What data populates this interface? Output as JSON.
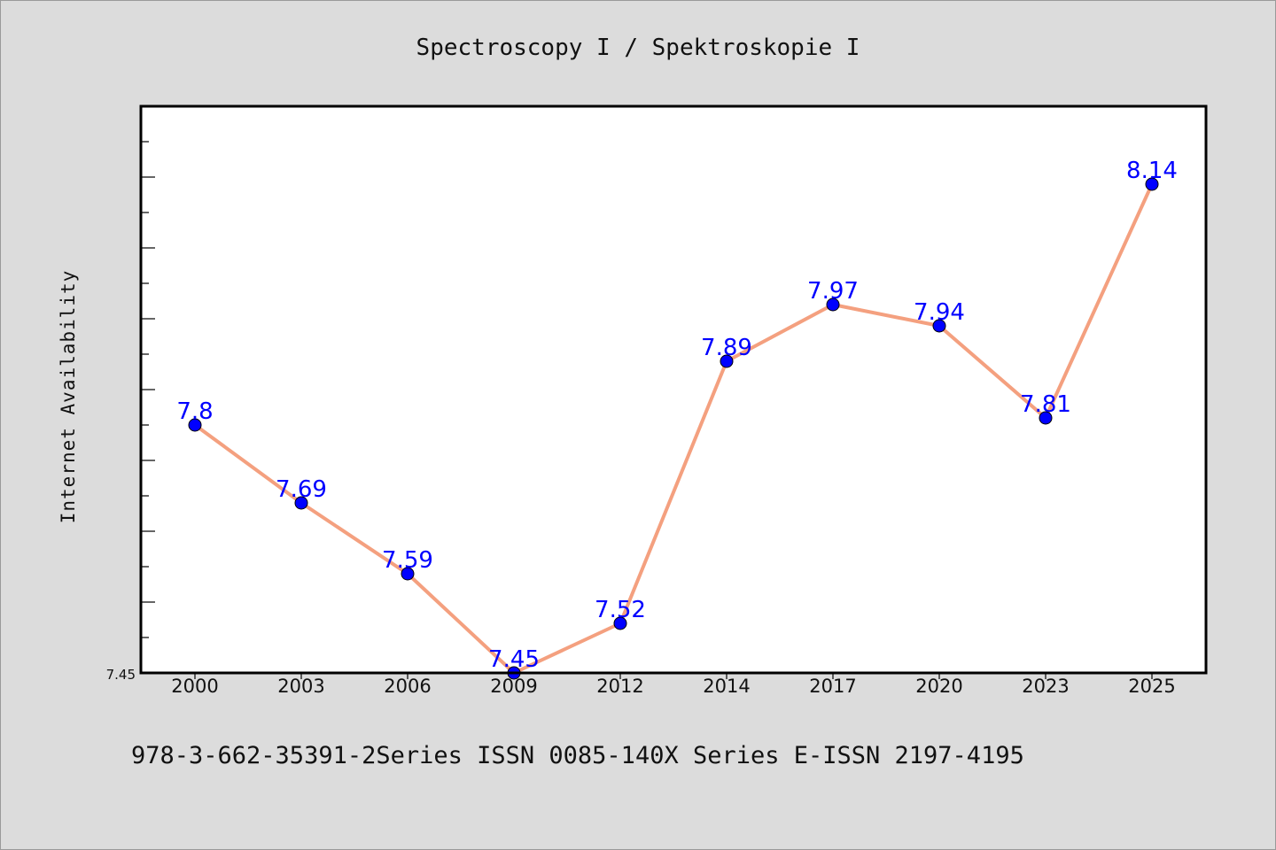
{
  "chart_data": {
    "type": "line",
    "title": "Spectroscopy I / Spektroskopie I",
    "ylabel": "Internet Availability",
    "xlabel": "",
    "categories": [
      "2000",
      "2003",
      "2006",
      "2009",
      "2012",
      "2014",
      "2017",
      "2020",
      "2023",
      "2025"
    ],
    "values": [
      7.8,
      7.69,
      7.59,
      7.45,
      7.52,
      7.89,
      7.97,
      7.94,
      7.81,
      8.14
    ],
    "data_labels": [
      "7.8",
      "7.69",
      "7.59",
      "7.45",
      "7.52",
      "7.89",
      "7.97",
      "7.94",
      "7.81",
      "8.14"
    ],
    "ytick_labels": [
      "7.45"
    ],
    "ylim": [
      7.45,
      8.25
    ],
    "minor_tick_step": 0.05,
    "grid": false,
    "legend": "none",
    "line_color": "#f4a07f",
    "marker_color": "#0000ff",
    "label_color": "#0000ff"
  },
  "footer": {
    "text": "978-3-662-35391-2Series ISSN 0085-140X Series E-ISSN 2197-4195"
  }
}
